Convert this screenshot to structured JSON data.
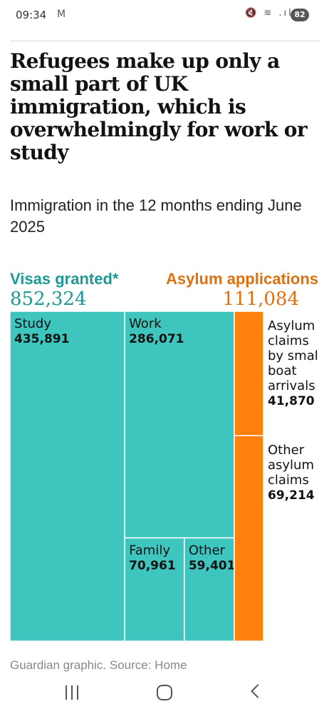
{
  "status_bar": {
    "time": "09:34",
    "mail_icon_glyph": "M",
    "signal_icons": "🔇 ≋ .ıl",
    "battery": "82"
  },
  "article": {
    "headline": "Refugees make up only a small part of UK immigration, which is overwhelmingly for work or study",
    "standfirst": "Immigration in the 12 months ending June 2025",
    "source": "Guardian graphic. Source: Home"
  },
  "chart_data": {
    "type": "treemap",
    "title": "Refugees make up only a small part of UK immigration, which is overwhelmingly for work or study",
    "subtitle": "Immigration in the 12 months ending June 2025",
    "groups": [
      {
        "name": "Visas granted*",
        "total": "852,324",
        "color": "#3ec5bd",
        "label_color": "#1d9892",
        "items": [
          {
            "name": "Study",
            "value": 435891,
            "value_label": "435,891"
          },
          {
            "name": "Work",
            "value": 286071,
            "value_label": "286,071"
          },
          {
            "name": "Family",
            "value": 70961,
            "value_label": "70,961"
          },
          {
            "name": "Other",
            "value": 59401,
            "value_label": "59,401"
          }
        ]
      },
      {
        "name": "Asylum applications",
        "total": "111,084",
        "color": "#ff7f0f",
        "label_color": "#e0700d",
        "items": [
          {
            "name": "Asylum claims by smal boat arrivals",
            "name_lines": [
              "Asylum",
              "claims",
              "by smal",
              "boat",
              "arrivals"
            ],
            "value": 41870,
            "value_label": "41,870"
          },
          {
            "name": "Other asylum claims",
            "name_lines": [
              "Other",
              "asylum",
              "claims"
            ],
            "value": 69214,
            "value_label": "69,214"
          }
        ]
      }
    ]
  },
  "icons": {
    "nav": [
      "recents-icon",
      "home-icon",
      "back-icon"
    ]
  }
}
